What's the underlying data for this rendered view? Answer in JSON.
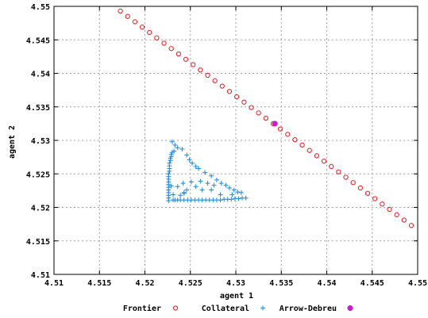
{
  "colors": {
    "frontier": "#e8262a",
    "collateral": "#2a8fe0",
    "arrow_debreu": "#cc1acc",
    "grid": "#a0a0a0",
    "axis": "#000000"
  },
  "chart_data": {
    "type": "scatter",
    "title": "",
    "xlabel": "agent 1",
    "ylabel": "agent 2",
    "xlim": [
      4.51,
      4.55
    ],
    "ylim": [
      4.51,
      4.55
    ],
    "xticks": [
      "4.51",
      "4.515",
      "4.52",
      "4.525",
      "4.53",
      "4.535",
      "4.54",
      "4.545",
      "4.55"
    ],
    "yticks": [
      "4.51",
      "4.515",
      "4.52",
      "4.525",
      "4.53",
      "4.535",
      "4.54",
      "4.545",
      "4.55"
    ],
    "grid": true,
    "legend_position": "bottom",
    "series": [
      {
        "name": "Frontier",
        "marker": "circle",
        "color_key": "frontier",
        "x": [
          4.5173,
          4.5181,
          4.5189,
          4.5197,
          4.5205,
          4.5213,
          4.5221,
          4.5229,
          4.5237,
          4.5245,
          4.5253,
          4.5261,
          4.5269,
          4.5277,
          4.5285,
          4.5293,
          4.5301,
          4.5309,
          4.5317,
          4.5325,
          4.5333,
          4.5341,
          4.5349,
          4.5357,
          4.5365,
          4.5373,
          4.5381,
          4.5389,
          4.5397,
          4.5405,
          4.5413,
          4.5421,
          4.5429,
          4.5437,
          4.5445,
          4.5453,
          4.5461,
          4.5469,
          4.5477,
          4.5485,
          4.5493
        ],
        "y": [
          4.5493,
          4.5485,
          4.5477,
          4.5469,
          4.5461,
          4.5453,
          4.5445,
          4.5437,
          4.5429,
          4.5421,
          4.5413,
          4.5405,
          4.5397,
          4.5389,
          4.5381,
          4.5373,
          4.5365,
          4.5357,
          4.5349,
          4.5341,
          4.5333,
          4.5325,
          4.5317,
          4.5309,
          4.5301,
          4.5293,
          4.5285,
          4.5277,
          4.5269,
          4.5261,
          4.5253,
          4.5245,
          4.5237,
          4.5229,
          4.5221,
          4.5213,
          4.5205,
          4.5197,
          4.5189,
          4.5181,
          4.5173
        ]
      },
      {
        "name": "Collateral",
        "marker": "plus",
        "color_key": "collateral",
        "x": [
          4.5226,
          4.5226,
          4.5226,
          4.5226,
          4.5226,
          4.5226,
          4.5226,
          4.5226,
          4.5226,
          4.5226,
          4.5226,
          4.5227,
          4.5227,
          4.5227,
          4.5227,
          4.5228,
          4.5228,
          4.5229,
          4.5229,
          4.523,
          4.5231,
          4.5233,
          4.5236,
          4.5239,
          4.5243,
          4.5247,
          4.5251,
          4.5255,
          4.5259,
          4.5263,
          4.5267,
          4.5271,
          4.5275,
          4.5279,
          4.5283,
          4.5287,
          4.5291,
          4.5295,
          4.5299,
          4.5303,
          4.5307,
          4.5311,
          4.523,
          4.5233,
          4.5236,
          4.5232,
          4.5241,
          4.5246,
          4.5249,
          4.5252,
          4.5256,
          4.5259,
          4.5266,
          4.5273,
          4.5279,
          4.5284,
          4.5289,
          4.5293,
          4.5298,
          4.5302,
          4.5242,
          4.5251,
          4.5261,
          4.5269,
          4.5276,
          4.5246,
          4.5256,
          4.5236,
          4.5263,
          4.5273,
          4.5243,
          4.5239,
          4.5229,
          4.5231,
          4.5243,
          4.5283,
          4.5296,
          4.5306
        ],
        "y": [
          4.521,
          4.5214,
          4.5218,
          4.5222,
          4.5226,
          4.523,
          4.5234,
          4.5238,
          4.5242,
          4.5246,
          4.525,
          4.5254,
          4.5258,
          4.5262,
          4.5266,
          4.527,
          4.5273,
          4.5276,
          4.5279,
          4.5282,
          4.5211,
          4.5211,
          4.5211,
          4.5211,
          4.5211,
          4.5211,
          4.5211,
          4.5211,
          4.5211,
          4.5211,
          4.5211,
          4.5211,
          4.5211,
          4.5211,
          4.5211,
          4.5212,
          4.5212,
          4.5212,
          4.5213,
          4.5213,
          4.5214,
          4.5214,
          4.5298,
          4.5293,
          4.5289,
          4.5284,
          4.5287,
          4.5278,
          4.5271,
          4.5266,
          4.5261,
          4.5258,
          4.5252,
          4.5247,
          4.5241,
          4.5236,
          4.5233,
          4.5229,
          4.5226,
          4.5223,
          4.5236,
          4.5238,
          4.5239,
          4.5236,
          4.5233,
          4.5226,
          4.5231,
          4.5231,
          4.5226,
          4.5226,
          4.5222,
          4.5218,
          4.5232,
          4.5219,
          4.5221,
          4.5219,
          4.5219,
          4.5222
        ]
      },
      {
        "name": "Arrow-Debreu",
        "marker": "filled-circle",
        "color_key": "arrow_debreu",
        "x": [
          4.5343
        ],
        "y": [
          4.5325
        ]
      }
    ]
  }
}
